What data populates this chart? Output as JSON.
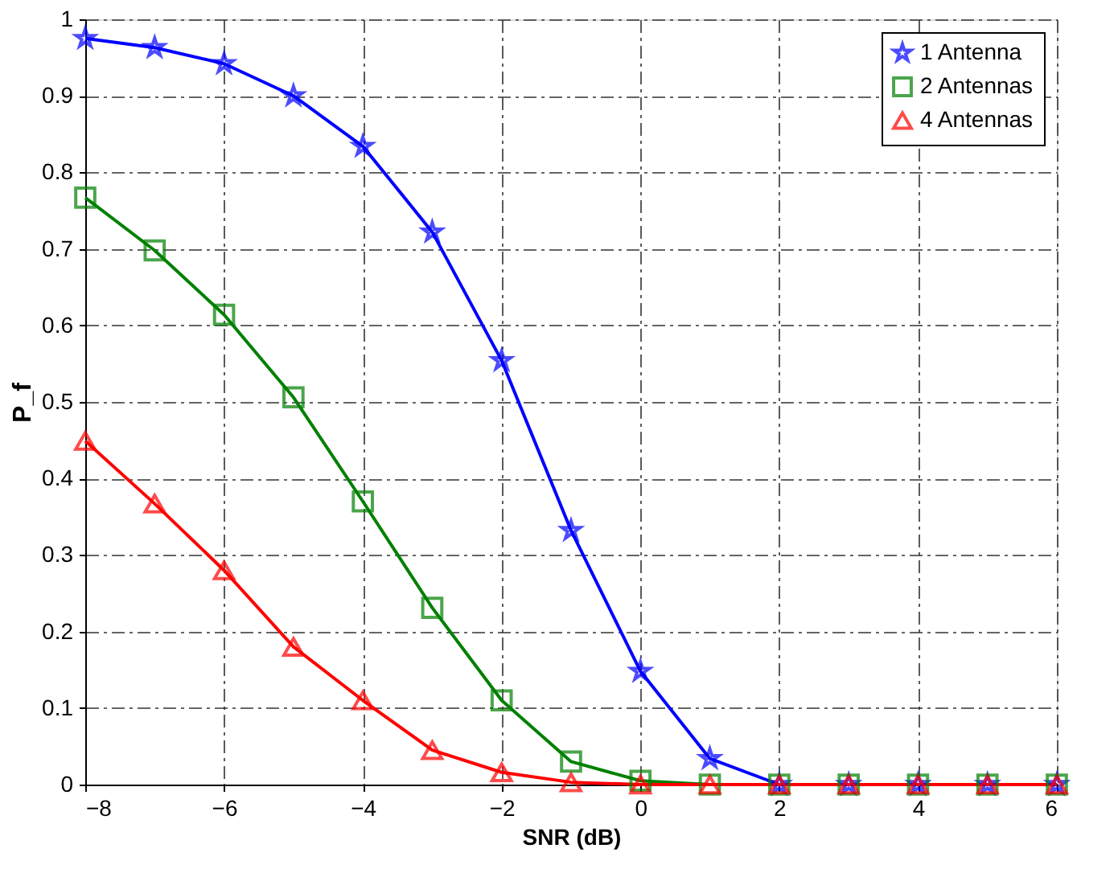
{
  "chart_data": {
    "type": "line",
    "xlabel": "SNR (dB)",
    "ylabel": "P_f",
    "x": [
      -8,
      -7,
      -6,
      -5,
      -4,
      -3,
      -2,
      -1,
      0,
      1,
      2,
      3,
      4,
      5,
      6
    ],
    "series": [
      {
        "name": "1 Antenna",
        "color": "#0000ff",
        "marker": "star",
        "values": [
          0.975,
          0.963,
          0.942,
          0.9,
          0.834,
          0.722,
          0.554,
          0.332,
          0.148,
          0.034,
          0,
          0,
          0,
          0,
          0
        ]
      },
      {
        "name": "2 Antennas",
        "color": "#008000",
        "marker": "square",
        "values": [
          0.767,
          0.698,
          0.614,
          0.506,
          0.37,
          0.231,
          0.11,
          0.03,
          0.005,
          0,
          0,
          0,
          0,
          0,
          0
        ]
      },
      {
        "name": "4 Antennas",
        "color": "#ff0000",
        "marker": "triangle",
        "values": [
          0.449,
          0.367,
          0.28,
          0.18,
          0.11,
          0.045,
          0.016,
          0.003,
          0,
          0,
          0,
          0,
          0,
          0,
          0
        ]
      }
    ],
    "xlim": [
      -8,
      6
    ],
    "xticks": [
      -8,
      -6,
      -4,
      -2,
      0,
      2,
      4,
      6
    ],
    "ylim": [
      0,
      1
    ],
    "yticks": [
      0,
      0.1,
      0.2,
      0.3,
      0.4,
      0.5,
      0.6,
      0.7,
      0.8,
      0.9,
      1
    ],
    "grid": true,
    "legend": "top right",
    "line_style": "solid"
  }
}
